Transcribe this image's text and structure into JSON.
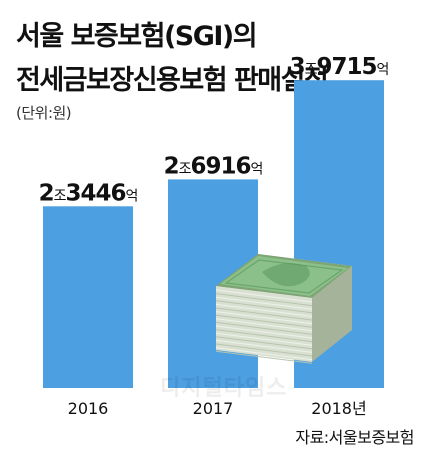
{
  "title_line1": "서울 보증보험(SGI)의",
  "title_line2": "전세금보장신용보험 판매실적",
  "unit_label": "(단위:원)",
  "source": "자료:서울보증보험",
  "watermark": "디지털타임스",
  "colors": {
    "bar": "#4c9fe1",
    "text": "#111111"
  },
  "illustration": "money-stack-icon",
  "chart_data": {
    "type": "bar",
    "categories": [
      "2016",
      "2017",
      "2018년"
    ],
    "values": [
      23446,
      26916,
      39715
    ],
    "value_unit": "억원",
    "data_labels": [
      {
        "jo": "2",
        "jo_unit": "조",
        "eok": "3446",
        "eok_unit": "억"
      },
      {
        "jo": "2",
        "jo_unit": "조",
        "eok": "6916",
        "eok_unit": "억"
      },
      {
        "jo": "3",
        "jo_unit": "조",
        "eok": "9715",
        "eok_unit": "억"
      }
    ],
    "title": "서울 보증보험(SGI)의 전세금보장신용보험 판매실적",
    "ylim": [
      0,
      40000
    ],
    "grid": false,
    "legend": "none"
  }
}
